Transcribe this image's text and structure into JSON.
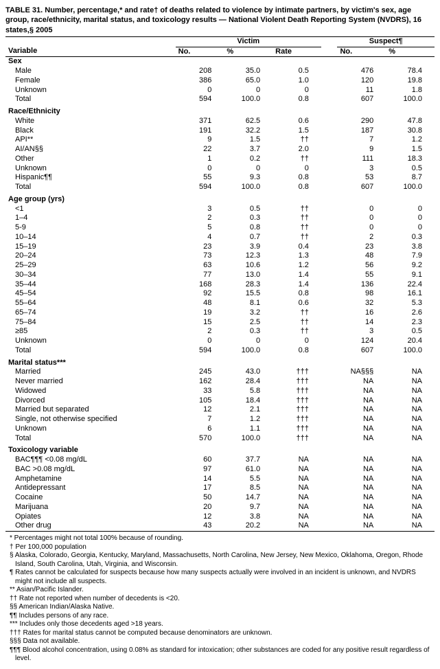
{
  "title": "TABLE 31. Number, percentage,* and rate† of deaths related to violence by intimate partners, by victim's sex, age group, race/ethnicity, marital status, and toxicology results — National Violent Death Reporting System (NVDRS), 16 states,§ 2005",
  "header": {
    "victim": "Victim",
    "suspect": "Suspect¶",
    "variable": "Variable",
    "no": "No.",
    "pct": "%",
    "rate": "Rate"
  },
  "sections": [
    {
      "label": "Sex",
      "rows": [
        {
          "l": "Male",
          "n1": "208",
          "p1": "35.0",
          "r": "0.5",
          "n2": "476",
          "p2": "78.4"
        },
        {
          "l": "Female",
          "n1": "386",
          "p1": "65.0",
          "r": "1.0",
          "n2": "120",
          "p2": "19.8"
        },
        {
          "l": "Unknown",
          "n1": "0",
          "p1": "0",
          "r": "0",
          "n2": "11",
          "p2": "1.8"
        },
        {
          "l": "Total",
          "n1": "594",
          "p1": "100.0",
          "r": "0.8",
          "n2": "607",
          "p2": "100.0"
        }
      ]
    },
    {
      "label": "Race/Ethnicity",
      "rows": [
        {
          "l": "White",
          "n1": "371",
          "p1": "62.5",
          "r": "0.6",
          "n2": "290",
          "p2": "47.8"
        },
        {
          "l": "Black",
          "n1": "191",
          "p1": "32.2",
          "r": "1.5",
          "n2": "187",
          "p2": "30.8"
        },
        {
          "l": "API**",
          "n1": "9",
          "p1": "1.5",
          "r": "††",
          "n2": "7",
          "p2": "1.2"
        },
        {
          "l": "AI/AN§§",
          "n1": "22",
          "p1": "3.7",
          "r": "2.0",
          "n2": "9",
          "p2": "1.5"
        },
        {
          "l": "Other",
          "n1": "1",
          "p1": "0.2",
          "r": "††",
          "n2": "111",
          "p2": "18.3"
        },
        {
          "l": "Unknown",
          "n1": "0",
          "p1": "0",
          "r": "0",
          "n2": "3",
          "p2": "0.5"
        },
        {
          "l": "Hispanic¶¶",
          "n1": "55",
          "p1": "9.3",
          "r": "0.8",
          "n2": "53",
          "p2": "8.7"
        },
        {
          "l": "Total",
          "n1": "594",
          "p1": "100.0",
          "r": "0.8",
          "n2": "607",
          "p2": "100.0"
        }
      ]
    },
    {
      "label": "Age group (yrs)",
      "rows": [
        {
          "l": "<1",
          "n1": "3",
          "p1": "0.5",
          "r": "††",
          "n2": "0",
          "p2": "0"
        },
        {
          "l": "1–4",
          "n1": "2",
          "p1": "0.3",
          "r": "††",
          "n2": "0",
          "p2": "0"
        },
        {
          "l": "5-9",
          "n1": "5",
          "p1": "0.8",
          "r": "††",
          "n2": "0",
          "p2": "0"
        },
        {
          "l": "10–14",
          "n1": "4",
          "p1": "0.7",
          "r": "††",
          "n2": "2",
          "p2": "0.3"
        },
        {
          "l": "15–19",
          "n1": "23",
          "p1": "3.9",
          "r": "0.4",
          "n2": "23",
          "p2": "3.8"
        },
        {
          "l": "20–24",
          "n1": "73",
          "p1": "12.3",
          "r": "1.3",
          "n2": "48",
          "p2": "7.9"
        },
        {
          "l": "25–29",
          "n1": "63",
          "p1": "10.6",
          "r": "1.2",
          "n2": "56",
          "p2": "9.2"
        },
        {
          "l": "30–34",
          "n1": "77",
          "p1": "13.0",
          "r": "1.4",
          "n2": "55",
          "p2": "9.1"
        },
        {
          "l": "35–44",
          "n1": "168",
          "p1": "28.3",
          "r": "1.4",
          "n2": "136",
          "p2": "22.4"
        },
        {
          "l": "45–54",
          "n1": "92",
          "p1": "15.5",
          "r": "0.8",
          "n2": "98",
          "p2": "16.1"
        },
        {
          "l": "55–64",
          "n1": "48",
          "p1": "8.1",
          "r": "0.6",
          "n2": "32",
          "p2": "5.3"
        },
        {
          "l": "65–74",
          "n1": "19",
          "p1": "3.2",
          "r": "††",
          "n2": "16",
          "p2": "2.6"
        },
        {
          "l": "75–84",
          "n1": "15",
          "p1": "2.5",
          "r": "††",
          "n2": "14",
          "p2": "2.3"
        },
        {
          "l": "≥85",
          "n1": "2",
          "p1": "0.3",
          "r": "††",
          "n2": "3",
          "p2": "0.5"
        },
        {
          "l": "Unknown",
          "n1": "0",
          "p1": "0",
          "r": "0",
          "n2": "124",
          "p2": "20.4"
        },
        {
          "l": "Total",
          "n1": "594",
          "p1": "100.0",
          "r": "0.8",
          "n2": "607",
          "p2": "100.0"
        }
      ]
    },
    {
      "label": "Marital status***",
      "rows": [
        {
          "l": "Married",
          "n1": "245",
          "p1": "43.0",
          "r": "†††",
          "n2": "NA§§§",
          "p2": "NA"
        },
        {
          "l": "Never married",
          "n1": "162",
          "p1": "28.4",
          "r": "†††",
          "n2": "NA",
          "p2": "NA"
        },
        {
          "l": "Widowed",
          "n1": "33",
          "p1": "5.8",
          "r": "†††",
          "n2": "NA",
          "p2": "NA"
        },
        {
          "l": "Divorced",
          "n1": "105",
          "p1": "18.4",
          "r": "†††",
          "n2": "NA",
          "p2": "NA"
        },
        {
          "l": "Married but separated",
          "n1": "12",
          "p1": "2.1",
          "r": "†††",
          "n2": "NA",
          "p2": "NA"
        },
        {
          "l": "Single, not otherwise specified",
          "n1": "7",
          "p1": "1.2",
          "r": "†††",
          "n2": "NA",
          "p2": "NA"
        },
        {
          "l": "Unknown",
          "n1": "6",
          "p1": "1.1",
          "r": "†††",
          "n2": "NA",
          "p2": "NA"
        },
        {
          "l": "Total",
          "n1": "570",
          "p1": "100.0",
          "r": "†††",
          "n2": "NA",
          "p2": "NA"
        }
      ]
    },
    {
      "label": "Toxicology variable",
      "rows": [
        {
          "l": "BAC¶¶¶ <0.08 mg/dL",
          "n1": "60",
          "p1": "37.7",
          "r": "NA",
          "n2": "NA",
          "p2": "NA"
        },
        {
          "l": "BAC >0.08 mg/dL",
          "n1": "97",
          "p1": "61.0",
          "r": "NA",
          "n2": "NA",
          "p2": "NA"
        },
        {
          "l": "Amphetamine",
          "n1": "14",
          "p1": "5.5",
          "r": "NA",
          "n2": "NA",
          "p2": "NA"
        },
        {
          "l": "Antidepressant",
          "n1": "17",
          "p1": "8.5",
          "r": "NA",
          "n2": "NA",
          "p2": "NA"
        },
        {
          "l": "Cocaine",
          "n1": "50",
          "p1": "14.7",
          "r": "NA",
          "n2": "NA",
          "p2": "NA"
        },
        {
          "l": "Marijuana",
          "n1": "20",
          "p1": "9.7",
          "r": "NA",
          "n2": "NA",
          "p2": "NA"
        },
        {
          "l": "Opiates",
          "n1": "12",
          "p1": "3.8",
          "r": "NA",
          "n2": "NA",
          "p2": "NA"
        },
        {
          "l": "Other drug",
          "n1": "43",
          "p1": "20.2",
          "r": "NA",
          "n2": "NA",
          "p2": "NA"
        }
      ]
    }
  ],
  "footnotes": [
    "* Percentages might not total 100% because of rounding.",
    "† Per 100,000 population",
    "§ Alaska, Colorado, Georgia, Kentucky, Maryland, Massachusetts, North Carolina, New Jersey, New Mexico, Oklahoma, Oregon, Rhode Island, South Carolina, Utah, Virginia, and Wisconsin.",
    "¶ Rates cannot be calculated for suspects because how many suspects actually were involved in an incident is unknown, and NVDRS might not include all suspects.",
    "** Asian/Pacific Islander.",
    "†† Rate not reported when number of decedents is <20.",
    "§§ American Indian/Alaska Native.",
    "¶¶ Includes persons of any race.",
    "*** Includes only those decedents aged >18 years.",
    "††† Rates for marital status cannot be computed because denominators are unknown.",
    "§§§ Data not available.",
    "¶¶¶ Blood alcohol concentration, using 0.08% as standard for intoxication; other substances are coded for any positive result regardless of level."
  ]
}
